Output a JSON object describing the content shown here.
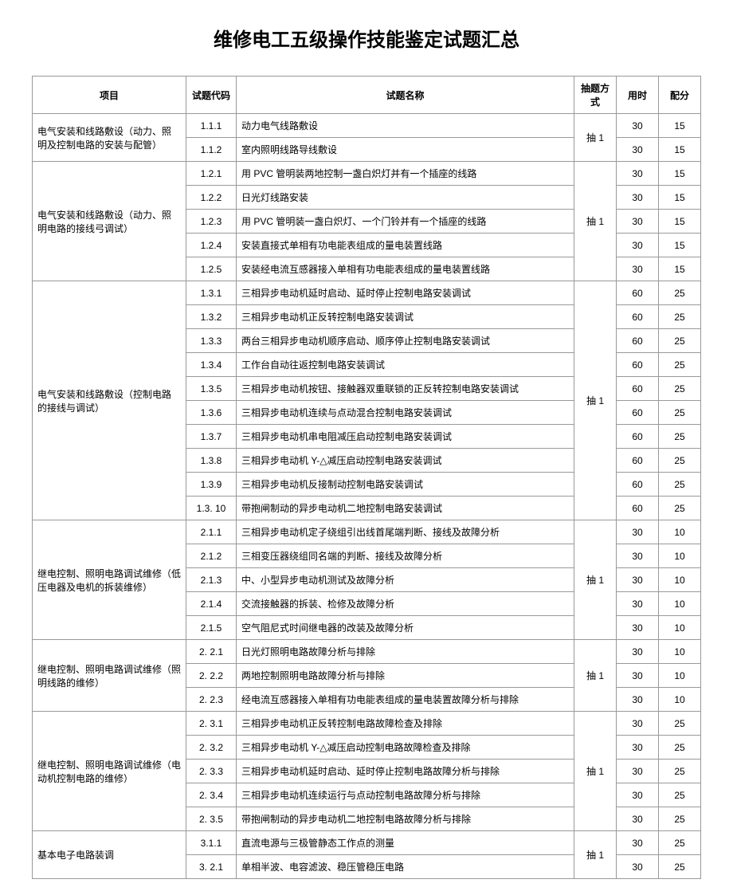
{
  "title": "维修电工五级操作技能鉴定试题汇总",
  "headers": {
    "project": "项目",
    "code": "试题代码",
    "name": "试题名称",
    "method": "抽题方式",
    "time": "用时",
    "score": "配分"
  },
  "groups": [
    {
      "project": "电气安装和线路敷设（动力、照 明及控制电路的安装与配管）",
      "method": "抽 1",
      "rows": [
        {
          "code": "1.1.1",
          "name": "动力电气线路敷设",
          "time": "30",
          "score": "15"
        },
        {
          "code": "1.1.2",
          "name": "室内照明线路导线敷设",
          "time": "30",
          "score": "15"
        }
      ]
    },
    {
      "project": "电气安装和线路敷设（动力、照 明电路的接线弓调试）",
      "method": "抽 1",
      "rows": [
        {
          "code": "1.2.1",
          "name": "用 PVC 管明装两地控制一盏白炽灯并有一个插座的线路",
          "time": "30",
          "score": "15"
        },
        {
          "code": "1.2.2",
          "name": "日光灯线路安装",
          "time": "30",
          "score": "15"
        },
        {
          "code": "1.2.3",
          "name": "用 PVC 管明装一盏白炽灯、一个门铃并有一个插座的线路",
          "time": "30",
          "score": "15"
        },
        {
          "code": "1.2.4",
          "name": "安装直接式单相有功电能表组成的量电装置线路",
          "time": "30",
          "score": "15"
        },
        {
          "code": "1.2.5",
          "name": "安装经电流互感器接入单相有功电能表组成的量电装置线路",
          "time": "30",
          "score": "15"
        }
      ]
    },
    {
      "project": "电气安装和线路敷设（控制电路 的接线与调试）",
      "method": "抽 1",
      "rows": [
        {
          "code": "1.3.1",
          "name": "三相异步电动机延时启动、延时停止控制电路安装调试",
          "time": "60",
          "score": "25"
        },
        {
          "code": "1.3.2",
          "name": "三相异步电动机正反转控制电路安装调试",
          "time": "60",
          "score": "25"
        },
        {
          "code": "1.3.3",
          "name": "两台三相异步电动机顺序启动、顺序停止控制电路安装调试",
          "time": "60",
          "score": "25"
        },
        {
          "code": "1.3.4",
          "name": "工作台自动往返控制电路安装调试",
          "time": "60",
          "score": "25"
        },
        {
          "code": "1.3.5",
          "name": "三相异步电动机按钮、接触器双重联锁的正反转控制电路安装调试",
          "time": "60",
          "score": "25"
        },
        {
          "code": "1.3.6",
          "name": "三相异步电动机连续与点动混合控制电路安装调试",
          "time": "60",
          "score": "25"
        },
        {
          "code": "1.3.7",
          "name": "三相异步电动机串电阻减压启动控制电路安装调试",
          "time": "60",
          "score": "25"
        },
        {
          "code": "1.3.8",
          "name": "三相异步电动机 Y-△减压启动控制电路安装调试",
          "time": "60",
          "score": "25"
        },
        {
          "code": "1.3.9",
          "name": "三相异步电动机反接制动控制电路安装调试",
          "time": "60",
          "score": "25"
        },
        {
          "code": "1.3. 10",
          "name": "带抱闸制动的异步电动机二地控制电路安装调试",
          "time": "60",
          "score": "25"
        }
      ]
    },
    {
      "project": "继电控制、照明电路调试维修（低压电器及电机的拆装维修）",
      "method": "抽 1",
      "rows": [
        {
          "code": "2.1.1",
          "name": "三相异步电动机定子绕组引出线首尾端判断、接线及故障分析",
          "time": "30",
          "score": "10"
        },
        {
          "code": "2.1.2",
          "name": "三相变压器绕组同名端的判断、接线及故障分析",
          "time": "30",
          "score": "10"
        },
        {
          "code": "2.1.3",
          "name": "中、小型异步电动机测试及故障分析",
          "time": "30",
          "score": "10"
        },
        {
          "code": "2.1.4",
          "name": "交流接触器的拆装、检修及故障分析",
          "time": "30",
          "score": "10"
        },
        {
          "code": "2.1.5",
          "name": "空气阻尼式时间继电器的改装及故障分析",
          "time": "30",
          "score": "10"
        }
      ]
    },
    {
      "project": "继电控制、照明电路调试维修（照明线路的维修）",
      "method": "抽 1",
      "rows": [
        {
          "code": "2. 2.1",
          "name": "日光灯照明电路故障分析与排除",
          "time": "30",
          "score": "10"
        },
        {
          "code": "2. 2.2",
          "name": "两地控制照明电路故障分析与排除",
          "time": "30",
          "score": "10"
        },
        {
          "code": "2. 2.3",
          "name": "经电流互感器接入单相有功电能表组成的量电装置故障分析与排除",
          "time": "30",
          "score": "10"
        }
      ]
    },
    {
      "project": "继电控制、照明电路调试维修（电动机控制电路的维修）",
      "method": "抽 1",
      "rows": [
        {
          "code": "2. 3.1",
          "name": "三相异步电动机正反转控制电路故障检查及排除",
          "time": "30",
          "score": "25"
        },
        {
          "code": "2. 3.2",
          "name": "三相异步电动机 Y-△减压启动控制电路故障检查及排除",
          "time": "30",
          "score": "25"
        },
        {
          "code": "2. 3.3",
          "name": "三相异步电动机延时启动、延时停止控制电路故障分析与排除",
          "time": "30",
          "score": "25"
        },
        {
          "code": "2. 3.4",
          "name": "三相异步电动机连续运行与点动控制电路故障分析与排除",
          "time": "30",
          "score": "25"
        },
        {
          "code": "2. 3.5",
          "name": "带抱闸制动的异步电动机二地控制电路故障分析与排除",
          "time": "30",
          "score": "25"
        }
      ]
    },
    {
      "project": "基本电子电路装调",
      "method": "抽 1",
      "rows": [
        {
          "code": "3.1.1",
          "name": "直流电源与三极管静态工作点的测量",
          "time": "30",
          "score": "25"
        },
        {
          "code": "3. 2.1",
          "name": "单相半波、电容滤波、稳压管稳压电路",
          "time": "30",
          "score": "25"
        }
      ]
    }
  ]
}
